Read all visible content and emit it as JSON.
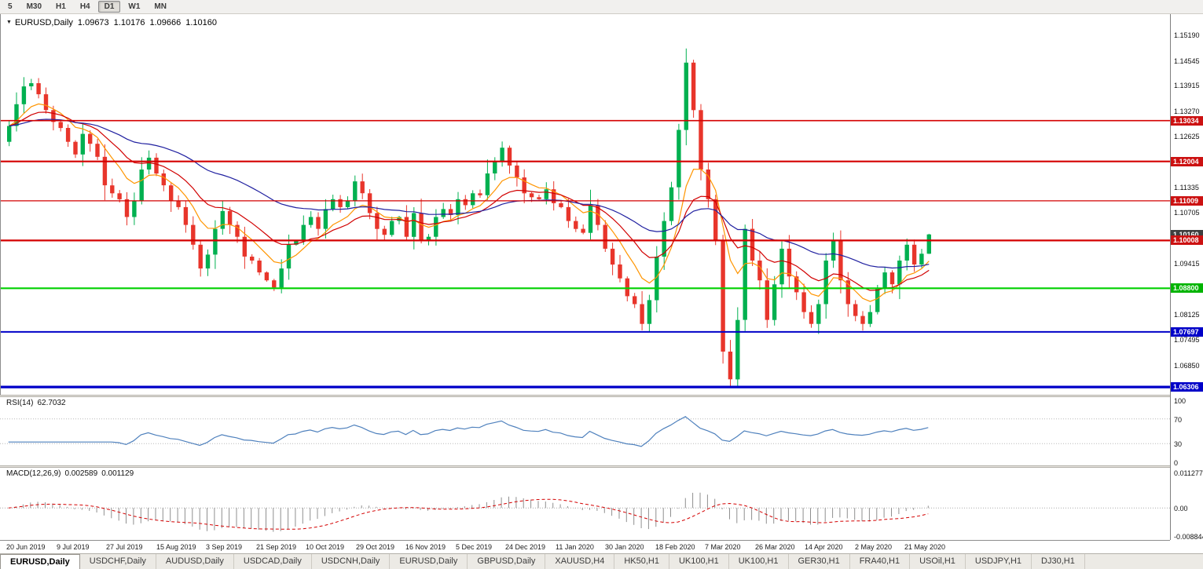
{
  "toolbar": {
    "timeframes": [
      "5",
      "M30",
      "H1",
      "H4",
      "D1",
      "W1",
      "MN"
    ],
    "active": "D1"
  },
  "chart_header": {
    "symbol_label": "EURUSD,Daily",
    "open": "1.09673",
    "high": "1.10176",
    "low": "1.09666",
    "close": "1.10160"
  },
  "chart_data": {
    "type": "candlestick",
    "title": "EURUSD,Daily",
    "x_labels": [
      "20 Jun 2019",
      "9 Jul 2019",
      "27 Jul 2019",
      "15 Aug 2019",
      "3 Sep 2019",
      "21 Sep 2019",
      "10 Oct 2019",
      "29 Oct 2019",
      "16 Nov 2019",
      "5 Dec 2019",
      "24 Dec 2019",
      "11 Jan 2020",
      "30 Jan 2020",
      "18 Feb 2020",
      "7 Mar 2020",
      "26 Mar 2020",
      "14 Apr 2020",
      "2 May 2020",
      "21 May 2020"
    ],
    "closes": [
      1.129,
      1.1345,
      1.139,
      1.1398,
      1.137,
      1.133,
      1.13,
      1.1285,
      1.125,
      1.1218,
      1.127,
      1.1245,
      1.1212,
      1.114,
      1.112,
      1.1105,
      1.106,
      1.11,
      1.118,
      1.121,
      1.117,
      1.114,
      1.11,
      1.1085,
      1.104,
      1.099,
      1.093,
      1.0965,
      1.103,
      1.1075,
      1.104,
      1.101,
      1.096,
      1.095,
      1.092,
      1.09,
      1.0882,
      1.093,
      1.099,
      1.1,
      1.104,
      1.106,
      1.103,
      1.108,
      1.1105,
      1.1085,
      1.11,
      1.115,
      1.112,
      1.107,
      1.103,
      1.1015,
      1.105,
      1.106,
      1.101,
      1.107,
      1.1,
      1.101,
      1.106,
      1.108,
      1.1065,
      1.1105,
      1.109,
      1.112,
      1.1115,
      1.117,
      1.12,
      1.1235,
      1.119,
      1.116,
      1.112,
      1.111,
      1.1105,
      1.113,
      1.1095,
      1.1085,
      1.105,
      1.103,
      1.102,
      1.109,
      1.104,
      1.098,
      1.094,
      1.0905,
      1.086,
      1.084,
      1.079,
      1.085,
      1.096,
      1.105,
      1.1135,
      1.128,
      1.145,
      1.133,
      1.118,
      1.1105,
      1.1,
      1.072,
      1.065,
      1.08,
      1.103,
      1.095,
      1.09,
      1.08,
      1.089,
      1.098,
      1.091,
      1.087,
      1.082,
      1.079,
      1.084,
      1.095,
      1.1,
      1.09,
      1.084,
      1.081,
      1.079,
      1.082,
      1.088,
      1.092,
      1.089,
      1.095,
      1.099,
      1.094,
      1.09673,
      1.1016
    ],
    "current_candle": {
      "open": 1.09673,
      "high": 1.10176,
      "low": 1.09666,
      "close": 1.1016
    },
    "price_range": {
      "top": 1.15725,
      "bottom": 1.0611
    },
    "price_axis_ticks": [
      "1.15190",
      "1.14545",
      "1.13915",
      "1.13270",
      "1.12625",
      "1.11335",
      "1.10705",
      "1.09415",
      "1.08125",
      "1.07495",
      "1.06850"
    ],
    "price_line_badges": [
      {
        "value": "1.13034",
        "color": "#cc1111"
      },
      {
        "value": "1.12004",
        "color": "#cc1111"
      },
      {
        "value": "1.11009",
        "color": "#cc1111"
      },
      {
        "value": "1.10160",
        "color": "#3f3f3f"
      },
      {
        "value": "1.10008",
        "color": "#cc1111"
      },
      {
        "value": "1.08800",
        "color": "#00b400"
      },
      {
        "value": "1.07697",
        "color": "#0000c8"
      },
      {
        "value": "1.06306",
        "color": "#0000c8"
      }
    ],
    "horizontal_lines": [
      {
        "price": 1.13034,
        "color": "#d40000",
        "width": 1.6
      },
      {
        "price": 1.12004,
        "color": "#d40000",
        "width": 2.2
      },
      {
        "price": 1.11009,
        "color": "#d40000",
        "width": 1.2
      },
      {
        "price": 1.10008,
        "color": "#d40000",
        "width": 2.2
      },
      {
        "price": 1.088,
        "color": "#00d000",
        "width": 2.2
      },
      {
        "price": 1.07697,
        "color": "#0000c8",
        "width": 2.0
      },
      {
        "price": 1.06306,
        "color": "#0000c8",
        "width": 3.2
      }
    ],
    "moving_averages": [
      {
        "color": "#ff9500",
        "period": 8
      },
      {
        "color": "#d10000",
        "period": 16
      },
      {
        "color": "#2020a0",
        "period": 40
      }
    ],
    "colors": {
      "up": "#00b050",
      "down": "#e8352b"
    },
    "indicators": {
      "rsi": {
        "label": "RSI(14)",
        "value_text": "62.7032",
        "period": 14,
        "levels": [
          70,
          30
        ],
        "axis_labels": [
          {
            "text": "100",
            "value": 100
          },
          {
            "text": "70",
            "value": 70
          },
          {
            "text": "30",
            "value": 30
          },
          {
            "text": "0",
            "value": 0
          }
        ],
        "line_color": "#4f81bd"
      },
      "macd": {
        "label": "MACD(12,26,9)",
        "macd_text": "0.002589",
        "signal_text": "0.001129",
        "fast": 12,
        "slow": 26,
        "signal_period": 9,
        "axis_labels": [
          {
            "text": "0.011277",
            "value": 0.011277
          },
          {
            "text": "0.00",
            "value": 0.0
          },
          {
            "text": "-0.008844",
            "value": -0.008844
          }
        ],
        "range_top": 0.0118,
        "range_bottom": -0.0092,
        "histogram_color": "#8f8f8f",
        "signal_color": "#d40000"
      }
    }
  },
  "tabs": {
    "active_index": 0,
    "items": [
      "EURUSD,Daily",
      "USDCHF,Daily",
      "AUDUSD,Daily",
      "USDCAD,Daily",
      "USDCNH,Daily",
      "EURUSD,Daily",
      "GBPUSD,Daily",
      "XAUUSD,H4",
      "HK50,H1",
      "UK100,H1",
      "UK100,H1",
      "GER30,H1",
      "FRA40,H1",
      "USOil,H1",
      "USDJPY,H1",
      "DJ30,H1"
    ]
  }
}
